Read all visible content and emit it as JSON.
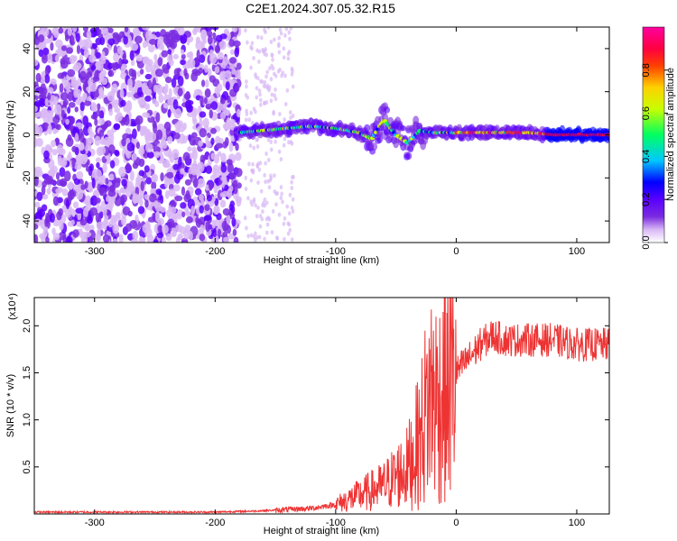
{
  "title": "C2E1.2024.307.05.32.R15",
  "chart_data": [
    {
      "type": "heatmap",
      "xlabel": "Height of straight line (km)",
      "ylabel": "Frequency (Hz)",
      "xlim": [
        -350,
        127
      ],
      "ylim": [
        -50,
        50
      ],
      "xticks": [
        -300,
        -200,
        -100,
        0,
        100
      ],
      "yticks": [
        -40,
        -20,
        0,
        20,
        40
      ],
      "colorbar": {
        "label": "Normalized spectral amplitude",
        "range": [
          0,
          1
        ],
        "ticks": [
          "0.0",
          "0.2",
          "0.4",
          "0.6",
          "0.8"
        ],
        "colors": [
          "#ffffff",
          "#d9b8f5",
          "#7a2be0",
          "#5a00ff",
          "#0000ff",
          "#00c8ff",
          "#00ff60",
          "#c8ff00",
          "#ffd000",
          "#ff4000",
          "#ff0040",
          "#ff00a0"
        ]
      },
      "ridge": {
        "x": [
          -180,
          -160,
          -140,
          -120,
          -100,
          -80,
          -70,
          -60,
          -50,
          -40,
          -30,
          -20,
          -10,
          0,
          20,
          40,
          60,
          80,
          127
        ],
        "y": [
          1,
          2,
          3,
          4,
          3,
          1,
          -2,
          7,
          0,
          -4,
          2,
          1,
          1,
          1,
          1,
          1,
          1,
          0,
          0
        ]
      }
    },
    {
      "type": "line",
      "xlabel": "Height of straight line (km)",
      "ylabel": "SNR (10 * v/v)",
      "y_multiplier": "(x10⁴)",
      "xlim": [
        -350,
        127
      ],
      "ylim": [
        0,
        2.3
      ],
      "xticks": [
        -300,
        -200,
        -100,
        0,
        100
      ],
      "yticks": [
        0.5,
        1.0,
        1.5,
        2.0
      ],
      "ytick_labels": [
        "0.5",
        "1.0",
        "1.5",
        "2.0"
      ],
      "series": [
        {
          "color": "#ee3333",
          "x": [
            -350,
            -300,
            -250,
            -200,
            -170,
            -150,
            -120,
            -100,
            -80,
            -60,
            -50,
            -40,
            -30,
            -25,
            -20,
            -15,
            -10,
            -5,
            0,
            10,
            20,
            30,
            40,
            60,
            80,
            100,
            127
          ],
          "y": [
            0.02,
            0.02,
            0.02,
            0.02,
            0.03,
            0.04,
            0.06,
            0.1,
            0.2,
            0.3,
            0.4,
            0.5,
            0.8,
            1.1,
            1.3,
            1.2,
            1.3,
            1.4,
            1.5,
            1.65,
            1.8,
            1.9,
            1.85,
            1.85,
            1.85,
            1.8,
            1.8
          ]
        }
      ]
    }
  ]
}
